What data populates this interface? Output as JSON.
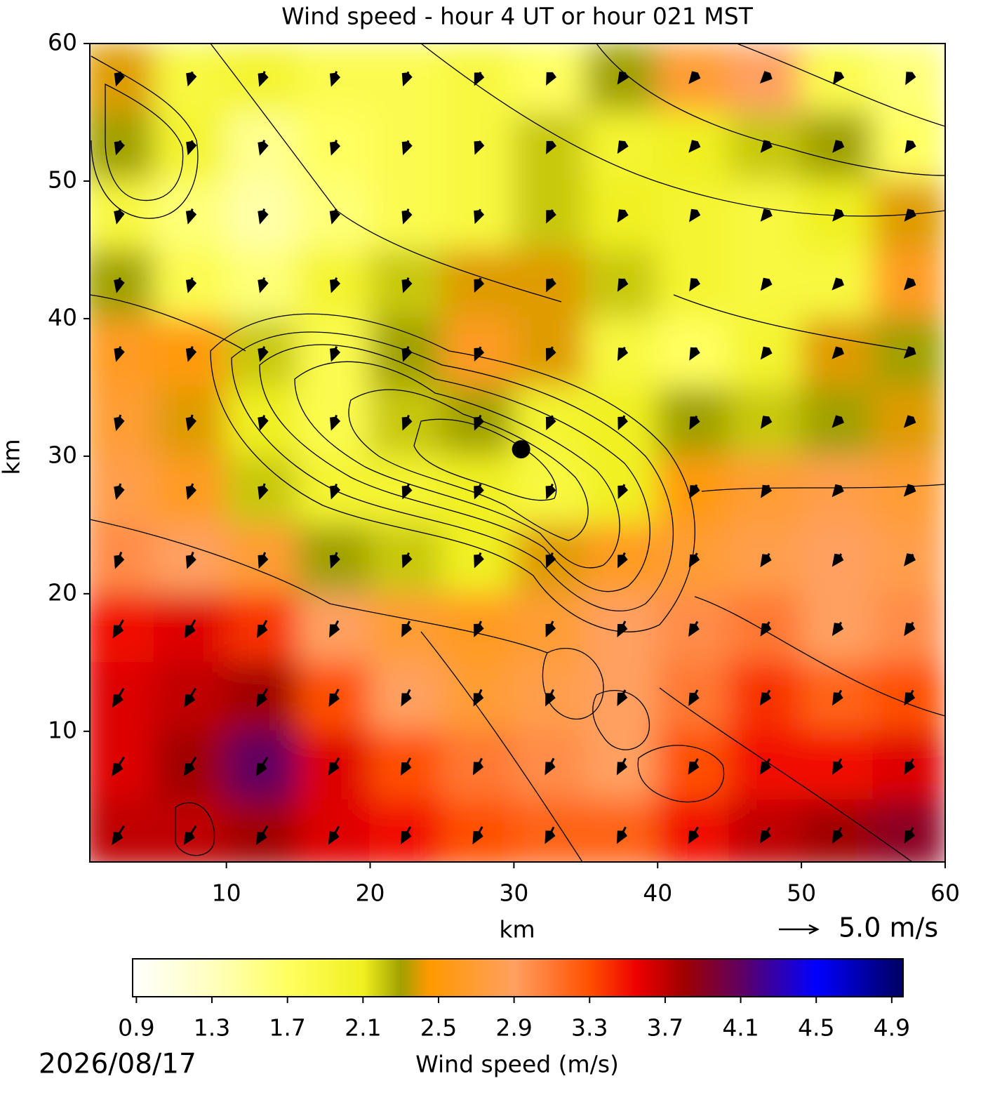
{
  "chart_data": {
    "type": "heatmap-quiver",
    "title": "Wind speed - hour 4 UT or hour 021 MST",
    "x_label": "km",
    "y_label": "km",
    "xlim": [
      0.5,
      60
    ],
    "ylim": [
      0.5,
      60
    ],
    "xticks": [
      10,
      20,
      30,
      40,
      50,
      60
    ],
    "yticks": [
      10,
      20,
      30,
      40,
      50,
      60
    ],
    "grid_x": [
      2.5,
      7.5,
      12.5,
      17.5,
      22.5,
      27.5,
      32.5,
      37.5,
      42.5,
      47.5,
      52.5,
      57.5
    ],
    "grid_y": [
      57.5,
      52.5,
      47.5,
      42.5,
      37.5,
      32.5,
      27.5,
      22.5,
      17.5,
      12.5,
      7.5,
      2.5
    ],
    "speed": [
      [
        2.4,
        1.9,
        2.0,
        1.8,
        1.8,
        1.9,
        1.7,
        2.3,
        2.7,
        2.9,
        1.8,
        1.6
      ],
      [
        2.3,
        2.0,
        1.5,
        1.7,
        1.8,
        1.9,
        2.2,
        2.0,
        2.1,
        2.2,
        2.3,
        1.7
      ],
      [
        1.9,
        1.6,
        1.4,
        1.6,
        1.8,
        1.9,
        2.2,
        2.1,
        2.0,
        1.9,
        2.1,
        2.4
      ],
      [
        2.3,
        1.8,
        1.6,
        2.0,
        2.2,
        2.4,
        2.4,
        2.2,
        2.0,
        1.9,
        1.9,
        2.6
      ],
      [
        2.6,
        2.5,
        2.2,
        1.8,
        2.3,
        2.6,
        2.4,
        1.9,
        1.7,
        2.0,
        2.4,
        2.3
      ],
      [
        2.7,
        2.4,
        2.1,
        1.8,
        2.2,
        2.3,
        2.0,
        2.1,
        2.3,
        2.2,
        2.3,
        2.4
      ],
      [
        2.8,
        2.6,
        2.2,
        2.0,
        2.0,
        2.1,
        1.9,
        2.1,
        2.5,
        2.7,
        2.8,
        2.7
      ],
      [
        3.0,
        2.9,
        2.7,
        2.3,
        2.2,
        2.1,
        2.4,
        2.6,
        2.7,
        2.8,
        2.9,
        2.8
      ],
      [
        3.5,
        3.6,
        3.4,
        2.9,
        2.7,
        2.6,
        2.7,
        2.9,
        3.0,
        3.1,
        2.9,
        3.0
      ],
      [
        3.6,
        3.7,
        3.8,
        3.3,
        2.9,
        2.7,
        2.8,
        2.9,
        3.1,
        3.4,
        3.2,
        3.3
      ],
      [
        3.6,
        3.8,
        4.1,
        3.6,
        3.3,
        3.1,
        3.0,
        2.9,
        3.3,
        3.5,
        3.5,
        3.6
      ],
      [
        3.7,
        3.7,
        3.8,
        3.6,
        3.5,
        3.3,
        3.2,
        3.2,
        3.5,
        3.7,
        3.8,
        3.9
      ]
    ],
    "u": [
      [
        -0.5,
        -0.5,
        -0.6,
        -0.6,
        -0.6,
        -0.7,
        -0.7,
        -0.8,
        -0.9,
        -1.0,
        -0.8,
        -0.7
      ],
      [
        -0.5,
        -0.5,
        -0.5,
        -0.6,
        -0.6,
        -0.6,
        -0.7,
        -0.8,
        -0.9,
        -0.9,
        -0.9,
        -0.8
      ],
      [
        -0.4,
        -0.5,
        -0.5,
        -0.5,
        -0.6,
        -0.6,
        -0.7,
        -0.8,
        -0.8,
        -0.9,
        -0.9,
        -0.9
      ],
      [
        -0.4,
        -0.5,
        -0.5,
        -0.6,
        -0.6,
        -0.7,
        -0.7,
        -0.8,
        -0.8,
        -0.9,
        -1.0,
        -1.0
      ],
      [
        -0.5,
        -0.5,
        -0.5,
        -0.6,
        -0.6,
        -0.7,
        -0.7,
        -0.8,
        -0.8,
        -0.9,
        -1.0,
        -1.0
      ],
      [
        -0.5,
        -0.5,
        -0.5,
        -0.6,
        -0.7,
        -0.7,
        -0.7,
        -0.7,
        -0.8,
        -0.9,
        -1.0,
        -1.0
      ],
      [
        -0.5,
        -0.6,
        -0.6,
        -0.6,
        -0.7,
        -0.7,
        -0.7,
        -0.7,
        -0.8,
        -0.9,
        -1.0,
        -1.0
      ],
      [
        -0.7,
        -0.7,
        -0.7,
        -0.7,
        -0.7,
        -0.7,
        -0.7,
        -0.8,
        -0.9,
        -1.0,
        -1.0,
        -1.0
      ],
      [
        -1.2,
        -1.2,
        -1.1,
        -1.0,
        -0.9,
        -0.8,
        -0.8,
        -0.9,
        -1.0,
        -1.0,
        -1.0,
        -1.0
      ],
      [
        -1.3,
        -1.3,
        -1.2,
        -1.1,
        -1.0,
        -0.9,
        -0.9,
        -0.9,
        -1.0,
        -1.1,
        -1.0,
        -1.0
      ],
      [
        -1.4,
        -1.4,
        -1.3,
        -1.2,
        -1.1,
        -1.0,
        -1.0,
        -1.0,
        -1.1,
        -1.1,
        -1.0,
        -1.0
      ],
      [
        -1.4,
        -1.4,
        -1.3,
        -1.2,
        -1.1,
        -1.1,
        -1.0,
        -1.0,
        -1.1,
        -1.1,
        -1.0,
        -1.0
      ]
    ],
    "v": [
      [
        -1.6,
        -1.6,
        -1.7,
        -1.7,
        -1.6,
        -1.5,
        -1.4,
        -1.2,
        -1.1,
        -1.0,
        -1.2,
        -1.3
      ],
      [
        -1.6,
        -1.6,
        -1.7,
        -1.7,
        -1.6,
        -1.5,
        -1.4,
        -1.3,
        -1.1,
        -1.1,
        -1.1,
        -1.2
      ],
      [
        -1.7,
        -1.7,
        -1.7,
        -1.7,
        -1.7,
        -1.6,
        -1.5,
        -1.3,
        -1.2,
        -1.1,
        -1.1,
        -1.1
      ],
      [
        -1.7,
        -1.7,
        -1.7,
        -1.7,
        -1.7,
        -1.6,
        -1.5,
        -1.4,
        -1.3,
        -1.2,
        -1.1,
        -1.1
      ],
      [
        -1.7,
        -1.7,
        -1.7,
        -1.7,
        -1.7,
        -1.6,
        -1.6,
        -1.5,
        -1.4,
        -1.2,
        -1.1,
        -1.0
      ],
      [
        -1.8,
        -1.8,
        -1.7,
        -1.7,
        -1.7,
        -1.7,
        -1.6,
        -1.6,
        -1.5,
        -1.3,
        -1.1,
        -1.1
      ],
      [
        -1.8,
        -1.8,
        -1.8,
        -1.7,
        -1.7,
        -1.7,
        -1.7,
        -1.6,
        -1.5,
        -1.4,
        -1.2,
        -1.1
      ],
      [
        -1.9,
        -1.9,
        -1.8,
        -1.8,
        -1.7,
        -1.7,
        -1.7,
        -1.7,
        -1.6,
        -1.5,
        -1.4,
        -1.3
      ],
      [
        -2.1,
        -2.1,
        -2.0,
        -1.9,
        -1.8,
        -1.8,
        -1.8,
        -1.8,
        -1.7,
        -1.6,
        -1.5,
        -1.5
      ],
      [
        -2.2,
        -2.2,
        -2.1,
        -2.0,
        -1.9,
        -1.9,
        -1.9,
        -1.8,
        -1.8,
        -1.7,
        -1.7,
        -1.7
      ],
      [
        -2.2,
        -2.2,
        -2.2,
        -2.0,
        -2.0,
        -1.9,
        -1.9,
        -1.9,
        -1.8,
        -1.8,
        -1.8,
        -1.8
      ],
      [
        -2.2,
        -2.2,
        -2.2,
        -2.1,
        -2.0,
        -2.0,
        -1.9,
        -1.9,
        -1.9,
        -1.8,
        -1.8,
        -1.8
      ]
    ],
    "marker": {
      "x": 30.5,
      "y": 30.5
    },
    "quiver_key": {
      "value": 5.0,
      "label": "5.0 m/s"
    },
    "colorbar": {
      "label": "Wind speed (m/s)",
      "clim": [
        0.88,
        4.96
      ],
      "ticks": [
        0.9,
        1.3,
        1.7,
        2.1,
        2.5,
        2.9,
        3.3,
        3.7,
        4.1,
        4.5,
        4.9
      ],
      "colorscale": [
        [
          0.88,
          "#ffffff"
        ],
        [
          1.3,
          "#ffffc0"
        ],
        [
          1.7,
          "#ffff60"
        ],
        [
          2.1,
          "#f0f020"
        ],
        [
          2.3,
          "#a0a000"
        ],
        [
          2.45,
          "#ff9900"
        ],
        [
          2.9,
          "#ffa060"
        ],
        [
          3.3,
          "#ff5000"
        ],
        [
          3.55,
          "#ee0000"
        ],
        [
          3.8,
          "#a00000"
        ],
        [
          4.1,
          "#600060"
        ],
        [
          4.5,
          "#0000ff"
        ],
        [
          4.96,
          "#000060"
        ]
      ]
    },
    "date": "2026/08/17"
  }
}
